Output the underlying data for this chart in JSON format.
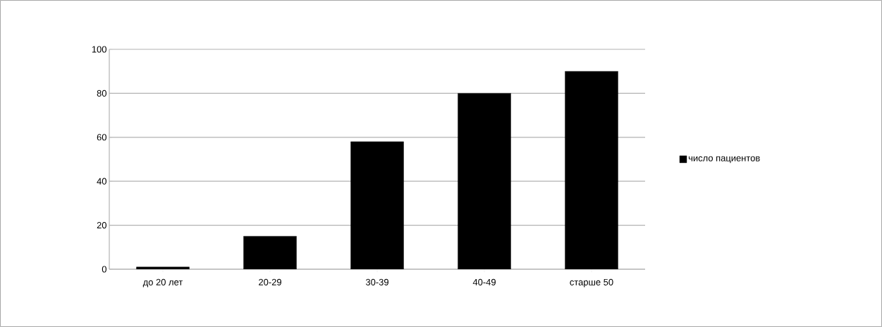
{
  "chart_data": {
    "type": "bar",
    "categories": [
      "до 20 лет",
      "20-29",
      "30-39",
      "40-49",
      "старше 50"
    ],
    "series": [
      {
        "name": "число пациентов",
        "color": "#000000",
        "values": [
          1,
          15,
          58,
          80,
          90
        ]
      }
    ],
    "ylim": [
      0,
      100
    ],
    "yticks": [
      0,
      20,
      40,
      60,
      80,
      100
    ],
    "grid": "y",
    "legend": "right"
  }
}
